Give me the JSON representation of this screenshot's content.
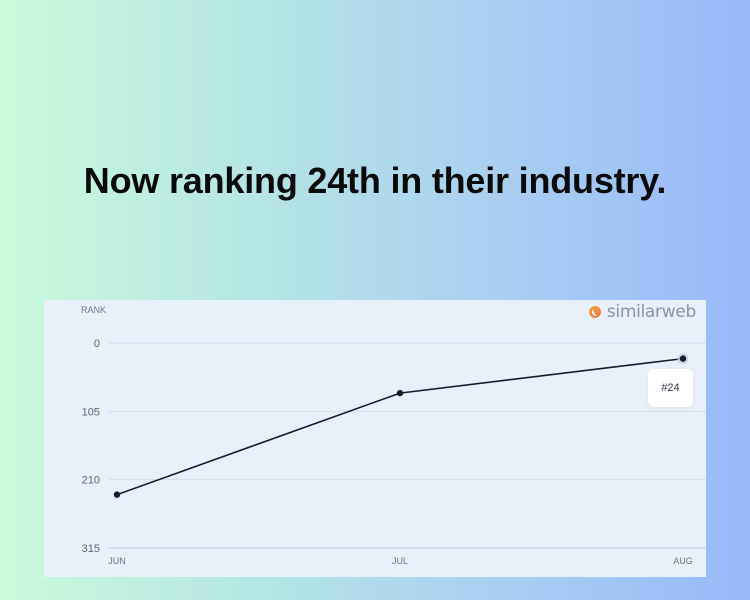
{
  "headline": "Now ranking 24th in their industry.",
  "brand": "similarweb",
  "tooltip": "#24",
  "colors": {
    "line": "#0f1d2e",
    "grid": "#d5dde9",
    "card": "#eaf0f9"
  },
  "chart_data": {
    "type": "line",
    "title": "",
    "ylabel": "RANK",
    "xlabel": "",
    "categories": [
      "JUN",
      "JUL",
      "AUG"
    ],
    "series": [
      {
        "values": [
          233,
          77,
          24
        ]
      }
    ],
    "y_ticks": [
      0,
      105,
      210,
      315
    ],
    "ylim": [
      0,
      315
    ],
    "y_inverted": true,
    "grid": true,
    "highlight": {
      "category": "AUG",
      "label": "#24"
    }
  }
}
